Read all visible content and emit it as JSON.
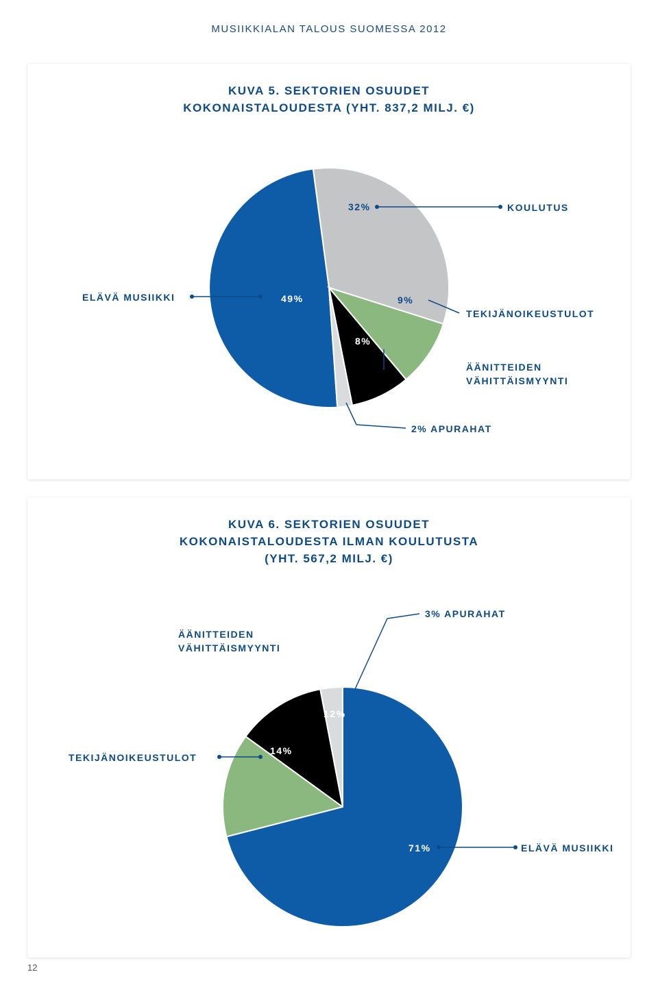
{
  "page_header": "MUSIIKKIALAN TALOUS SUOMESSA 2012",
  "page_number": "12",
  "colors": {
    "header_text": "#1a4a7a",
    "title_text": "#0d4a86",
    "label_text": "#0d4a86",
    "card_bg": "#ffffff",
    "slice_live": "#0e5ca8",
    "slice_edu": "#c3c5c7",
    "slice_copy": "#8ab87f",
    "slice_rec": "#000000",
    "slice_grants": "#d9dbdc",
    "leader": "#0d4a86"
  },
  "chart1": {
    "type": "pie",
    "title_line1": "KUVA 5. SEKTORIEN OSUUDET",
    "title_line2": "KOKONAISTALOUDESTA (YHT. 837,2 MILJ. €)",
    "slices": [
      {
        "id": "elava",
        "label": "ELÄVÄ MUSIIKKI",
        "value": 49,
        "value_label": "49%",
        "color": "#0e5ca8"
      },
      {
        "id": "koulutus",
        "label": "KOULUTUS",
        "value": 32,
        "value_label": "32%",
        "color": "#c3c5c7"
      },
      {
        "id": "tekija",
        "label": "TEKIJÄNOIKEUSTULOT",
        "value": 9,
        "value_label": "9%",
        "color": "#8ab87f"
      },
      {
        "id": "aanit",
        "label": "ÄÄNITTEIDEN",
        "label2": "VÄHITTÄISMYYNTI",
        "value": 8,
        "value_label": "8%",
        "color": "#000000"
      },
      {
        "id": "apu",
        "label": "2% APURAHAT",
        "value": 2,
        "value_label": "",
        "color": "#d9dbdc"
      }
    ]
  },
  "chart2": {
    "type": "pie",
    "title_line1": "KUVA 6. SEKTORIEN OSUUDET",
    "title_line2": "KOKONAISTALOUDESTA ILMAN KOULUTUSTA",
    "title_line3": "(YHT. 567,2 MILJ. €)",
    "slices": [
      {
        "id": "apu2",
        "label": "3% APURAHAT",
        "value": 3,
        "value_label": "",
        "color": "#d9dbdc"
      },
      {
        "id": "aanit2",
        "label": "ÄÄNITTEIDEN",
        "label2": "VÄHITTÄISMYYNTI",
        "value": 12,
        "value_label": "12%",
        "color": "#000000"
      },
      {
        "id": "tekija2",
        "label": "TEKIJÄNOIKEUSTULOT",
        "value": 14,
        "value_label": "14%",
        "color": "#8ab87f"
      },
      {
        "id": "elava2",
        "label": "ELÄVÄ MUSIIKKI",
        "value": 71,
        "value_label": "71%",
        "color": "#0e5ca8"
      }
    ]
  }
}
